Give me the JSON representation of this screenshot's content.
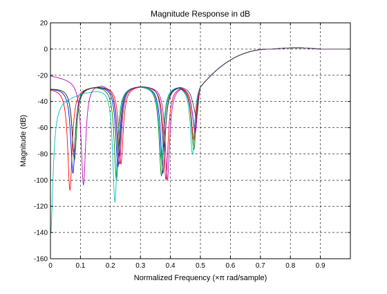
{
  "chart_data": {
    "type": "line",
    "title": "Magnitude Response in dB",
    "xlabel": "Normalized Frequency  (×π rad/sample)",
    "ylabel": "Magnitude (dB)",
    "xlim": [
      0,
      1
    ],
    "ylim": [
      -160,
      20
    ],
    "xticks": [
      0,
      0.1,
      0.2,
      0.3,
      0.4,
      0.5,
      0.6,
      0.7,
      0.8,
      0.9
    ],
    "xtick_labels": [
      "0",
      "0.1",
      "0.2",
      "0.3",
      "0.4",
      "0.5",
      "0.6",
      "0.7",
      "0.8",
      "0.9"
    ],
    "yticks": [
      20,
      0,
      -20,
      -40,
      -60,
      -80,
      -100,
      -120,
      -140,
      -160
    ],
    "ytick_labels": [
      "20",
      "0",
      "-20",
      "-40",
      "-60",
      "-80",
      "-100",
      "-120",
      "-140",
      "-160"
    ],
    "grid": true,
    "grid_style": "dashed",
    "legend": "none",
    "series": [
      {
        "color": "#0000ff",
        "start": -30,
        "zeros": [
          0.075,
          0.225,
          0.375,
          0.485
        ],
        "depths": [
          -95,
          -90,
          -95,
          -90
        ]
      },
      {
        "color": "#008000",
        "start": -30,
        "zeros": [
          0.08,
          0.22,
          0.37,
          0.48
        ],
        "depths": [
          -85,
          -100,
          -97,
          -95
        ]
      },
      {
        "color": "#ff0000",
        "start": -30,
        "zeros": [
          0.065,
          0.235,
          0.385,
          0.48
        ],
        "depths": [
          -108,
          -88,
          -100,
          -85
        ]
      },
      {
        "color": "#00bfbf",
        "start": -40,
        "zeros": [
          0.001,
          0.215,
          0.37,
          0.475
        ],
        "depths": [
          -140,
          -117,
          -85,
          -88
        ]
      },
      {
        "color": "#bf00bf",
        "start": -20,
        "zeros": [
          0.11,
          0.23,
          0.39,
          0.485
        ],
        "depths": [
          -104,
          -88,
          -100,
          -88
        ]
      },
      {
        "color": "#404040",
        "start": -30,
        "zeros": [
          0.078,
          0.228,
          0.378,
          0.49
        ],
        "depths": [
          -78,
          -82,
          -75,
          -82
        ]
      }
    ]
  }
}
